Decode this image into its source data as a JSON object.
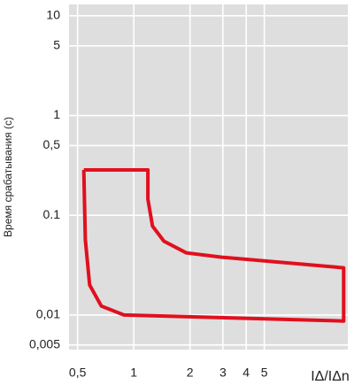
{
  "chart_data": {
    "type": "line",
    "y_label": "Время срабатывания (с)",
    "x_label": "IΔ/IΔn",
    "log_x": true,
    "log_y": true,
    "grid": true,
    "xlim": [
      0.45,
      14
    ],
    "ylim": [
      0.0045,
      13
    ],
    "xticks": [
      {
        "value": 0.5,
        "label": "0,5"
      },
      1,
      2,
      3,
      4,
      5
    ],
    "yticks": [
      10,
      5,
      1,
      {
        "value": 0.5,
        "label": "0,5"
      },
      0.1,
      {
        "value": 0.01,
        "label": "0,01"
      },
      {
        "value": 0.005,
        "label": "0,005"
      }
    ],
    "series": [
      {
        "color": "#e0101e",
        "x": [
          0.54,
          1.19,
          1.19,
          1.26,
          1.45,
          1.91,
          2.96,
          13.3,
          13.3,
          0.886,
          0.67,
          0.58,
          0.55,
          0.54
        ],
        "values": [
          0.285,
          0.285,
          0.145,
          0.078,
          0.055,
          0.042,
          0.038,
          0.0297,
          0.0087,
          0.01,
          0.0123,
          0.02,
          0.057,
          0.285
        ]
      }
    ]
  }
}
